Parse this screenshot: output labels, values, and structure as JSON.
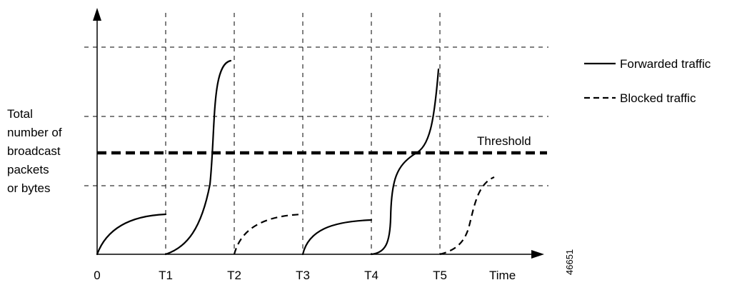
{
  "diagram": {
    "y_axis_label_lines": [
      "Total",
      "number of",
      "broadcast",
      "packets",
      "or bytes"
    ],
    "x_ticks": [
      "0",
      "T1",
      "T2",
      "T3",
      "T4",
      "T5"
    ],
    "x_axis_label": "Time",
    "threshold_label": "Threshold",
    "legend": {
      "forwarded": "Forwarded traffic",
      "blocked": "Blocked traffic"
    },
    "figure_id": "46651",
    "colors": {
      "ink": "#000000",
      "grid": "#000000",
      "background": "#ffffff"
    }
  }
}
